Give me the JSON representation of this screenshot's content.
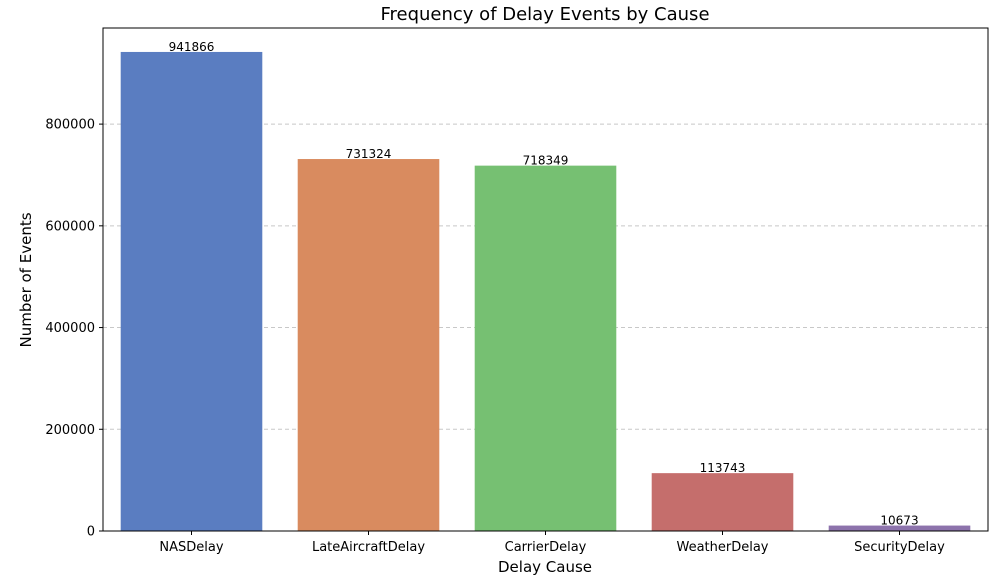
{
  "chart_data": {
    "type": "bar",
    "title": "Frequency of Delay Events by Cause",
    "xlabel": "Delay Cause",
    "ylabel": "Number of Events",
    "categories": [
      "NASDelay",
      "LateAircraftDelay",
      "CarrierDelay",
      "WeatherDelay",
      "SecurityDelay"
    ],
    "values": [
      941866,
      731324,
      718349,
      113743,
      10673
    ],
    "data_labels": [
      "941866",
      "731324",
      "718349",
      "113743",
      "10673"
    ],
    "colors": [
      "#5a7dc1",
      "#d98b5f",
      "#76c072",
      "#c56e6c",
      "#8d73ac"
    ],
    "ylim": [
      0,
      988959
    ],
    "yticks": [
      0,
      200000,
      400000,
      600000,
      800000
    ],
    "ytick_labels": [
      "0",
      "200000",
      "400000",
      "600000",
      "800000"
    ],
    "grid": "y-dashed",
    "legend": "none"
  }
}
